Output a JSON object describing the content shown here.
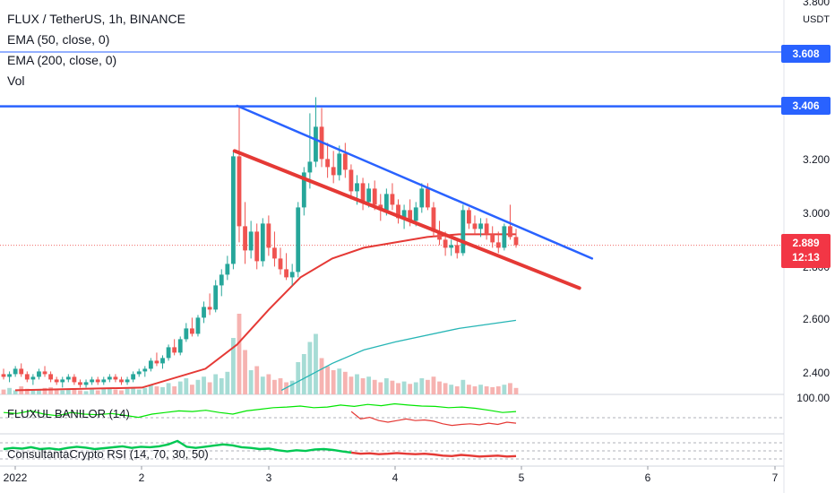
{
  "header": {
    "symbol_line": "FLUX / TetherUS, 1h, BINANCE",
    "indicators": [
      "EMA (50, close, 0)",
      "EMA (200, close, 0)",
      "Vol"
    ]
  },
  "panes": {
    "fluxul_label": "FLUXUL BANILOR (14)",
    "rsi_label": "ConsultantaCrypto RSI (14, 70, 30, 50)",
    "fluxul_scale_label": "100.00"
  },
  "price_axis": {
    "currency": "USDT",
    "ticks": [
      "3.800",
      "3.200",
      "3.000",
      "2.800",
      "2.600",
      "2.400"
    ],
    "levels": [
      {
        "label": "3.608",
        "value": 3.608,
        "color": "#2962ff"
      },
      {
        "label": "3.406",
        "value": 3.406,
        "color": "#2962ff"
      }
    ],
    "last_price": {
      "label": "2.889",
      "countdown": "12:13",
      "color": "#f23645"
    }
  },
  "time_axis": {
    "ticks": [
      "2022",
      "2",
      "3",
      "4",
      "5",
      "6",
      "7"
    ]
  },
  "colors": {
    "up": "#26a69a",
    "down": "#ef5350",
    "ema50": "#e53935",
    "ema200": "#26b5b5",
    "resistance_line": "#2962ff",
    "support_line": "#e53935",
    "fluxul": "#00e600",
    "rsi": "#00c853"
  },
  "chart_data": {
    "type": "candlestick",
    "title": "FLUX / TetherUS, 1h, BINANCE",
    "x_range_days": [
      1,
      7
    ],
    "y_range": [
      2.35,
      3.86
    ],
    "horizontal_levels": [
      3.608,
      3.406
    ],
    "trendlines": [
      {
        "name": "resistance",
        "from": {
          "day": 2.75,
          "price": 3.408
        },
        "to": {
          "day": 5.55,
          "price": 2.84
        }
      },
      {
        "name": "support",
        "from": {
          "day": 2.73,
          "price": 3.24
        },
        "to": {
          "day": 5.45,
          "price": 2.73
        }
      }
    ],
    "ema50": [
      [
        1.0,
        2.35
      ],
      [
        2.0,
        2.36
      ],
      [
        2.5,
        2.43
      ],
      [
        2.75,
        2.52
      ],
      [
        3.0,
        2.65
      ],
      [
        3.25,
        2.77
      ],
      [
        3.5,
        2.84
      ],
      [
        3.75,
        2.88
      ],
      [
        4.0,
        2.9
      ],
      [
        4.25,
        2.92
      ],
      [
        4.5,
        2.93
      ],
      [
        4.75,
        2.93
      ],
      [
        4.95,
        2.93
      ]
    ],
    "ema200": [
      [
        3.1,
        2.35
      ],
      [
        3.5,
        2.45
      ],
      [
        3.75,
        2.5
      ],
      [
        4.0,
        2.53
      ],
      [
        4.5,
        2.58
      ],
      [
        4.95,
        2.61
      ]
    ],
    "candles": [
      [
        2.41,
        2.43,
        2.39,
        2.4
      ],
      [
        2.4,
        2.42,
        2.38,
        2.41
      ],
      [
        2.41,
        2.44,
        2.4,
        2.43
      ],
      [
        2.43,
        2.45,
        2.4,
        2.41
      ],
      [
        2.41,
        2.42,
        2.38,
        2.39
      ],
      [
        2.39,
        2.41,
        2.37,
        2.4
      ],
      [
        2.4,
        2.43,
        2.39,
        2.42
      ],
      [
        2.42,
        2.44,
        2.4,
        2.41
      ],
      [
        2.41,
        2.42,
        2.38,
        2.39
      ],
      [
        2.39,
        2.4,
        2.37,
        2.38
      ],
      [
        2.38,
        2.4,
        2.36,
        2.39
      ],
      [
        2.39,
        2.41,
        2.38,
        2.4
      ],
      [
        2.4,
        2.41,
        2.37,
        2.38
      ],
      [
        2.38,
        2.39,
        2.36,
        2.37
      ],
      [
        2.37,
        2.39,
        2.36,
        2.38
      ],
      [
        2.38,
        2.4,
        2.37,
        2.39
      ],
      [
        2.39,
        2.4,
        2.37,
        2.38
      ],
      [
        2.38,
        2.4,
        2.37,
        2.39
      ],
      [
        2.39,
        2.41,
        2.38,
        2.4
      ],
      [
        2.4,
        2.41,
        2.38,
        2.39
      ],
      [
        2.39,
        2.4,
        2.37,
        2.38
      ],
      [
        2.38,
        2.4,
        2.37,
        2.39
      ],
      [
        2.39,
        2.42,
        2.38,
        2.41
      ],
      [
        2.41,
        2.43,
        2.4,
        2.42
      ],
      [
        2.42,
        2.44,
        2.4,
        2.43
      ],
      [
        2.43,
        2.47,
        2.42,
        2.46
      ],
      [
        2.46,
        2.49,
        2.44,
        2.45
      ],
      [
        2.45,
        2.48,
        2.43,
        2.47
      ],
      [
        2.47,
        2.52,
        2.46,
        2.51
      ],
      [
        2.51,
        2.54,
        2.48,
        2.49
      ],
      [
        2.49,
        2.55,
        2.48,
        2.54
      ],
      [
        2.54,
        2.6,
        2.53,
        2.58
      ],
      [
        2.58,
        2.62,
        2.55,
        2.56
      ],
      [
        2.56,
        2.63,
        2.55,
        2.62
      ],
      [
        2.62,
        2.68,
        2.6,
        2.66
      ],
      [
        2.66,
        2.71,
        2.63,
        2.65
      ],
      [
        2.65,
        2.76,
        2.64,
        2.74
      ],
      [
        2.74,
        2.8,
        2.7,
        2.78
      ],
      [
        2.78,
        2.85,
        2.76,
        2.82
      ],
      [
        2.82,
        3.24,
        2.8,
        3.22
      ],
      [
        3.22,
        3.41,
        2.9,
        2.96
      ],
      [
        2.96,
        3.05,
        2.82,
        2.87
      ],
      [
        2.87,
        2.98,
        2.84,
        2.94
      ],
      [
        2.94,
        2.97,
        2.8,
        2.83
      ],
      [
        2.83,
        2.99,
        2.81,
        2.97
      ],
      [
        2.97,
        3.0,
        2.85,
        2.88
      ],
      [
        2.88,
        2.94,
        2.81,
        2.84
      ],
      [
        2.84,
        2.88,
        2.78,
        2.8
      ],
      [
        2.8,
        2.86,
        2.76,
        2.77
      ],
      [
        2.77,
        2.82,
        2.74,
        2.79
      ],
      [
        2.79,
        3.05,
        2.77,
        3.03
      ],
      [
        3.03,
        3.18,
        3.0,
        3.16
      ],
      [
        3.16,
        3.38,
        3.1,
        3.2
      ],
      [
        3.2,
        3.44,
        3.18,
        3.33
      ],
      [
        3.33,
        3.4,
        3.18,
        3.21
      ],
      [
        3.21,
        3.27,
        3.14,
        3.18
      ],
      [
        3.18,
        3.24,
        3.12,
        3.15
      ],
      [
        3.15,
        3.26,
        3.13,
        3.23
      ],
      [
        3.23,
        3.27,
        3.14,
        3.17
      ],
      [
        3.17,
        3.19,
        3.06,
        3.09
      ],
      [
        3.09,
        3.15,
        3.04,
        3.12
      ],
      [
        3.12,
        3.14,
        3.02,
        3.05
      ],
      [
        3.05,
        3.12,
        3.03,
        3.1
      ],
      [
        3.1,
        3.13,
        3.02,
        3.04
      ],
      [
        3.04,
        3.08,
        2.98,
        3.02
      ],
      [
        3.02,
        3.1,
        3.0,
        3.08
      ],
      [
        3.08,
        3.12,
        3.02,
        3.04
      ],
      [
        3.04,
        3.06,
        2.97,
        2.99
      ],
      [
        2.99,
        3.04,
        2.95,
        3.02
      ],
      [
        3.02,
        3.06,
        2.96,
        2.98
      ],
      [
        2.98,
        3.05,
        2.96,
        3.03
      ],
      [
        3.03,
        3.12,
        3.01,
        3.1
      ],
      [
        3.1,
        3.12,
        3.02,
        3.03
      ],
      [
        3.03,
        3.05,
        2.92,
        2.94
      ],
      [
        2.94,
        2.98,
        2.89,
        2.91
      ],
      [
        2.91,
        2.94,
        2.85,
        2.88
      ],
      [
        2.88,
        2.91,
        2.85,
        2.89
      ],
      [
        2.89,
        2.91,
        2.84,
        2.86
      ],
      [
        2.86,
        3.04,
        2.85,
        3.02
      ],
      [
        3.02,
        3.03,
        2.95,
        2.97
      ],
      [
        2.97,
        3.0,
        2.93,
        2.95
      ],
      [
        2.95,
        2.99,
        2.92,
        2.97
      ],
      [
        2.97,
        2.99,
        2.91,
        2.93
      ],
      [
        2.93,
        2.96,
        2.88,
        2.9
      ],
      [
        2.9,
        2.94,
        2.86,
        2.88
      ],
      [
        2.88,
        2.97,
        2.87,
        2.96
      ],
      [
        2.96,
        3.04,
        2.91,
        2.92
      ],
      [
        2.92,
        2.95,
        2.88,
        2.89
      ]
    ],
    "volume": [
      0.06,
      0.08,
      0.05,
      0.1,
      0.07,
      0.06,
      0.05,
      0.08,
      0.09,
      0.06,
      0.05,
      0.07,
      0.06,
      0.05,
      0.04,
      0.06,
      0.05,
      0.07,
      0.08,
      0.06,
      0.05,
      0.07,
      0.09,
      0.06,
      0.08,
      0.12,
      0.1,
      0.09,
      0.14,
      0.1,
      0.16,
      0.2,
      0.12,
      0.18,
      0.22,
      0.15,
      0.25,
      0.2,
      0.28,
      0.7,
      1.0,
      0.55,
      0.3,
      0.35,
      0.22,
      0.25,
      0.18,
      0.2,
      0.15,
      0.17,
      0.4,
      0.5,
      0.65,
      0.75,
      0.45,
      0.35,
      0.3,
      0.32,
      0.28,
      0.22,
      0.25,
      0.2,
      0.22,
      0.18,
      0.15,
      0.2,
      0.17,
      0.14,
      0.16,
      0.13,
      0.15,
      0.2,
      0.18,
      0.22,
      0.16,
      0.14,
      0.12,
      0.1,
      0.18,
      0.12,
      0.1,
      0.12,
      0.1,
      0.09,
      0.1,
      0.12,
      0.14,
      0.08
    ],
    "fluxul_banilor": [
      0.55,
      0.52,
      0.6,
      0.5,
      0.45,
      0.55,
      0.5,
      0.48,
      0.52,
      0.46,
      0.4,
      0.5,
      0.55,
      0.6,
      0.58,
      0.62,
      0.55,
      0.5,
      0.6,
      0.65,
      0.7,
      0.72,
      0.75,
      0.7,
      0.72,
      0.78,
      0.74,
      0.8,
      0.76,
      0.82,
      0.78,
      0.75,
      0.74,
      0.7,
      0.72,
      0.68,
      0.62,
      0.55,
      0.58,
      0.35,
      0.4,
      0.3,
      0.25,
      0.3,
      0.35,
      0.3,
      0.32,
      0.28,
      0.2,
      0.15,
      0.18,
      0.2,
      0.17,
      0.22,
      0.18,
      0.25,
      0.22
    ],
    "rsi": [
      0.5,
      0.55,
      0.52,
      0.58,
      0.5,
      0.53,
      0.48,
      0.55,
      0.6,
      0.56,
      0.5,
      0.54,
      0.58,
      0.62,
      0.55,
      0.6,
      0.58,
      0.62,
      0.7,
      0.85,
      0.6,
      0.55,
      0.6,
      0.65,
      0.7,
      0.66,
      0.58,
      0.55,
      0.5,
      0.52,
      0.45,
      0.4,
      0.45,
      0.42,
      0.48,
      0.5,
      0.46,
      0.4,
      0.35,
      0.3,
      0.32,
      0.28,
      0.3,
      0.33,
      0.3,
      0.28,
      0.3,
      0.27,
      0.22,
      0.2,
      0.25,
      0.22,
      0.18,
      0.2,
      0.22,
      0.18,
      0.2
    ]
  }
}
